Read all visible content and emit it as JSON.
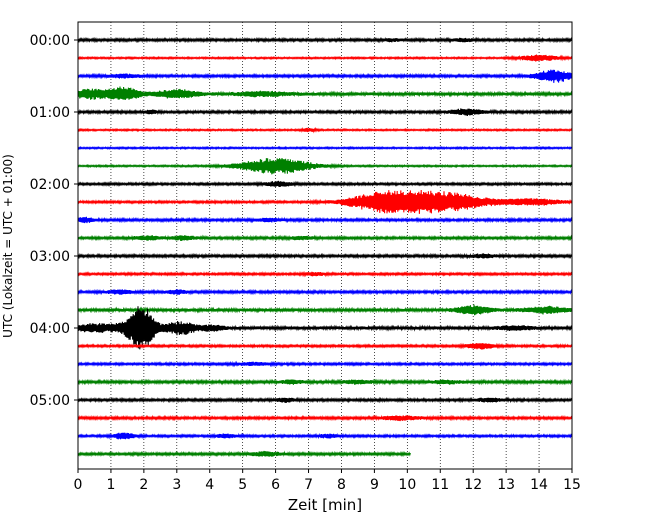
{
  "chart_data": {
    "type": "line",
    "title": "",
    "xlabel": "Zeit  [min]",
    "ylabel": "UTC (Lokalzeit = UTC + 01:00)",
    "xlim": [
      0,
      15
    ],
    "xticks": [
      0,
      1,
      2,
      3,
      4,
      5,
      6,
      7,
      8,
      9,
      10,
      11,
      12,
      13,
      14,
      15
    ],
    "ytick_labels": [
      "00:00",
      "01:00",
      "02:00",
      "03:00",
      "04:00",
      "05:00"
    ],
    "trace_interval_min": 15,
    "trace_count": 24,
    "trace_colors": [
      "#000000",
      "#ff0000",
      "#0000ff",
      "#008000"
    ],
    "grid": "x dotted",
    "last_trace_end_min": 10.1,
    "traces": [
      {
        "start": "00:00",
        "color": "#000000",
        "noise": 0.9,
        "events": [
          {
            "t": 9.5,
            "amp": 1.2,
            "w": 0.3
          },
          {
            "t": 11.7,
            "amp": 1.6,
            "w": 0.3
          }
        ]
      },
      {
        "start": "00:15",
        "color": "#ff0000",
        "noise": 0.6,
        "events": [
          {
            "t": 14.0,
            "amp": 3.0,
            "w": 0.6
          }
        ]
      },
      {
        "start": "00:30",
        "color": "#0000ff",
        "noise": 0.9,
        "events": [
          {
            "t": 1.4,
            "amp": 1.8,
            "w": 0.5
          },
          {
            "t": 14.5,
            "amp": 6.0,
            "w": 0.6
          }
        ]
      },
      {
        "start": "00:45",
        "color": "#008000",
        "noise": 1.2,
        "events": [
          {
            "t": 0.4,
            "amp": 4.5,
            "w": 0.6
          },
          {
            "t": 1.4,
            "amp": 6.0,
            "w": 0.5
          },
          {
            "t": 3.0,
            "amp": 4.0,
            "w": 0.6
          },
          {
            "t": 5.6,
            "amp": 2.0,
            "w": 0.8
          }
        ]
      },
      {
        "start": "01:00",
        "color": "#000000",
        "noise": 0.9,
        "events": [
          {
            "t": 2.2,
            "amp": 1.8,
            "w": 0.2
          },
          {
            "t": 11.8,
            "amp": 3.0,
            "w": 0.5
          }
        ]
      },
      {
        "start": "01:15",
        "color": "#ff0000",
        "noise": 0.6,
        "events": [
          {
            "t": 7.0,
            "amp": 1.5,
            "w": 0.2
          }
        ]
      },
      {
        "start": "01:30",
        "color": "#0000ff",
        "noise": 0.6,
        "events": []
      },
      {
        "start": "01:45",
        "color": "#008000",
        "noise": 0.6,
        "events": [
          {
            "t": 6.0,
            "amp": 8.0,
            "w": 1.1
          }
        ]
      },
      {
        "start": "02:00",
        "color": "#000000",
        "noise": 0.8,
        "events": [
          {
            "t": 6.1,
            "amp": 2.5,
            "w": 0.4
          }
        ]
      },
      {
        "start": "02:15",
        "color": "#ff0000",
        "noise": 0.8,
        "events": [
          {
            "t": 9.3,
            "amp": 9.0,
            "w": 1.1
          },
          {
            "t": 11.0,
            "amp": 10.0,
            "w": 1.4
          },
          {
            "t": 13.8,
            "amp": 3.0,
            "w": 0.9
          }
        ]
      },
      {
        "start": "02:30",
        "color": "#0000ff",
        "noise": 0.9,
        "events": [
          {
            "t": 0.2,
            "amp": 2.5,
            "w": 0.3
          },
          {
            "t": 5.8,
            "amp": 1.5,
            "w": 0.4
          }
        ]
      },
      {
        "start": "02:45",
        "color": "#008000",
        "noise": 0.9,
        "events": [
          {
            "t": 2.1,
            "amp": 2.0,
            "w": 0.4
          },
          {
            "t": 3.2,
            "amp": 2.0,
            "w": 0.4
          },
          {
            "t": 6.8,
            "amp": 1.5,
            "w": 0.4
          }
        ]
      },
      {
        "start": "03:00",
        "color": "#000000",
        "noise": 0.9,
        "events": [
          {
            "t": 12.3,
            "amp": 1.8,
            "w": 0.4
          }
        ]
      },
      {
        "start": "03:15",
        "color": "#ff0000",
        "noise": 0.8,
        "events": [
          {
            "t": 7.2,
            "amp": 1.5,
            "w": 0.3
          }
        ]
      },
      {
        "start": "03:30",
        "color": "#0000ff",
        "noise": 0.9,
        "events": [
          {
            "t": 1.3,
            "amp": 2.0,
            "w": 0.4
          },
          {
            "t": 3.0,
            "amp": 2.0,
            "w": 0.3
          }
        ]
      },
      {
        "start": "03:45",
        "color": "#008000",
        "noise": 1.2,
        "events": [
          {
            "t": 12.0,
            "amp": 4.0,
            "w": 0.5
          },
          {
            "t": 14.2,
            "amp": 3.0,
            "w": 0.6
          }
        ]
      },
      {
        "start": "04:00",
        "color": "#000000",
        "noise": 1.2,
        "events": [
          {
            "t": 0.5,
            "amp": 4.0,
            "w": 0.6
          },
          {
            "t": 1.7,
            "amp": 9.0,
            "w": 0.5
          },
          {
            "t": 2.0,
            "amp": 17.0,
            "w": 0.35
          },
          {
            "t": 3.1,
            "amp": 6.0,
            "w": 0.5
          },
          {
            "t": 4.1,
            "amp": 2.5,
            "w": 0.4
          },
          {
            "t": 13.3,
            "amp": 2.0,
            "w": 0.5
          }
        ]
      },
      {
        "start": "04:15",
        "color": "#ff0000",
        "noise": 0.8,
        "events": [
          {
            "t": 12.2,
            "amp": 3.0,
            "w": 0.4
          }
        ]
      },
      {
        "start": "04:30",
        "color": "#0000ff",
        "noise": 0.8,
        "events": [
          {
            "t": 5.3,
            "amp": 1.5,
            "w": 0.5
          }
        ]
      },
      {
        "start": "04:45",
        "color": "#008000",
        "noise": 1.0,
        "events": [
          {
            "t": 6.5,
            "amp": 1.8,
            "w": 0.3
          },
          {
            "t": 8.5,
            "amp": 1.5,
            "w": 0.5
          },
          {
            "t": 11.2,
            "amp": 1.5,
            "w": 0.5
          }
        ]
      },
      {
        "start": "05:00",
        "color": "#000000",
        "noise": 0.9,
        "events": [
          {
            "t": 6.3,
            "amp": 2.0,
            "w": 0.3
          },
          {
            "t": 12.5,
            "amp": 1.8,
            "w": 0.4
          }
        ]
      },
      {
        "start": "05:15",
        "color": "#ff0000",
        "noise": 0.9,
        "events": [
          {
            "t": 9.8,
            "amp": 2.0,
            "w": 0.6
          }
        ]
      },
      {
        "start": "05:30",
        "color": "#0000ff",
        "noise": 0.8,
        "events": [
          {
            "t": 1.4,
            "amp": 3.5,
            "w": 0.3
          },
          {
            "t": 4.5,
            "amp": 2.0,
            "w": 0.3
          },
          {
            "t": 7.6,
            "amp": 1.8,
            "w": 0.3
          }
        ]
      },
      {
        "start": "05:45",
        "color": "#008000",
        "noise": 0.9,
        "events": [
          {
            "t": 5.7,
            "amp": 2.0,
            "w": 0.5
          }
        ]
      }
    ]
  }
}
